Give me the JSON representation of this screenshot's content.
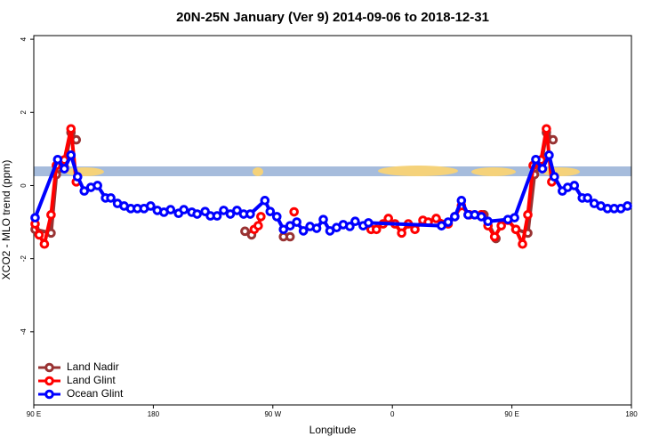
{
  "chart_data": {
    "type": "line",
    "title": "20N-25N January (Ver 9)   2014-09-06 to 2018-12-31",
    "x_label": "Longitude",
    "y_label": "XCO2 - MLO trend (ppm)",
    "xlim": [
      90,
      540
    ],
    "ylim": [
      -6,
      4.1
    ],
    "xticks": [
      {
        "value": 90,
        "label": "90 E"
      },
      {
        "value": 180,
        "label": "180"
      },
      {
        "value": 270,
        "label": "90 W"
      },
      {
        "value": 360,
        "label": "0"
      },
      {
        "value": 450,
        "label": "90 E"
      },
      {
        "value": 540,
        "label": "180"
      }
    ],
    "yticks": [
      -4,
      -2,
      0,
      2,
      4
    ],
    "legend": "bottom-left",
    "series": [
      {
        "name": "Land Nadir",
        "color": "#993333",
        "x": [
          91,
          103,
          107,
          113,
          118,
          122,
          200,
          249,
          254,
          265,
          278,
          283,
          320,
          344,
          380,
          429,
          438,
          445,
          453,
          462,
          467,
          472,
          476,
          481
        ],
        "values": [
          -1.2,
          -1.3,
          0.3,
          0.5,
          1.45,
          1.25,
          null,
          -1.25,
          -1.35,
          null,
          -1.4,
          -1.4,
          null,
          -1.2,
          null,
          -0.8,
          -1.45,
          null,
          -1.2,
          -1.3,
          0.3,
          0.55,
          1.45,
          1.25
        ]
      },
      {
        "name": "Land Glint",
        "color": "#ff0000",
        "x": [
          91,
          94,
          98,
          103,
          107,
          113,
          118,
          122,
          200,
          256,
          259,
          261,
          275,
          286,
          320,
          344,
          348,
          353,
          357,
          362,
          367,
          372,
          377,
          383,
          387,
          393,
          402,
          407,
          412,
          418,
          427,
          432,
          437,
          442,
          447,
          453,
          458,
          462,
          466,
          472,
          476,
          480
        ],
        "values": [
          -1.05,
          -1.35,
          -1.6,
          -0.8,
          0.55,
          0.7,
          1.55,
          0.1,
          null,
          -1.2,
          -1.1,
          -0.85,
          null,
          -0.72,
          null,
          -1.2,
          -1.2,
          -1.05,
          -0.9,
          -1.05,
          -1.3,
          -1.05,
          -1.2,
          -0.95,
          -1.0,
          -0.9,
          -1.05,
          -0.85,
          -0.55,
          -0.8,
          -0.8,
          -1.1,
          -1.4,
          -1.1,
          -0.95,
          -1.2,
          -1.6,
          -0.8,
          0.55,
          0.7,
          1.55,
          0.1
        ]
      },
      {
        "name": "Ocean Glint",
        "color": "#0000ff",
        "x": [
          91,
          108,
          113,
          118,
          123,
          128,
          133,
          138,
          144,
          148,
          153,
          158,
          163,
          168,
          173,
          178,
          183,
          188,
          193,
          199,
          203,
          209,
          213,
          219,
          223,
          228,
          233,
          238,
          243,
          248,
          253,
          264,
          268,
          273,
          278,
          283,
          288,
          293,
          298,
          303,
          308,
          313,
          318,
          323,
          328,
          332,
          338,
          342,
          397,
          402,
          407,
          412,
          417,
          422,
          427,
          432,
          447,
          452,
          468,
          473,
          478,
          482,
          488,
          492,
          497,
          503,
          507,
          512,
          517,
          522,
          527,
          532,
          537
        ],
        "values": [
          -0.88,
          0.71,
          0.46,
          0.83,
          0.24,
          -0.15,
          -0.05,
          0,
          -0.34,
          -0.34,
          -0.49,
          -0.56,
          -0.63,
          -0.63,
          -0.63,
          -0.56,
          -0.68,
          -0.73,
          -0.66,
          -0.76,
          -0.66,
          -0.73,
          -0.78,
          -0.71,
          -0.83,
          -0.83,
          -0.68,
          -0.78,
          -0.68,
          -0.78,
          -0.78,
          -0.41,
          -0.71,
          -0.85,
          -1.2,
          -1.1,
          -1.0,
          -1.24,
          -1.12,
          -1.17,
          -0.93,
          -1.24,
          -1.15,
          -1.07,
          -1.12,
          -0.98,
          -1.1,
          -1.02,
          -1.1,
          -1.0,
          -0.85,
          -0.41,
          -0.8,
          -0.8,
          -0.85,
          -0.98,
          -0.93,
          -0.88,
          0.71,
          0.46,
          0.83,
          0.24,
          -0.15,
          -0.05,
          0,
          -0.34,
          -0.34,
          -0.49,
          -0.56,
          -0.63,
          -0.63,
          -0.63,
          -0.56
        ]
      }
    ]
  }
}
